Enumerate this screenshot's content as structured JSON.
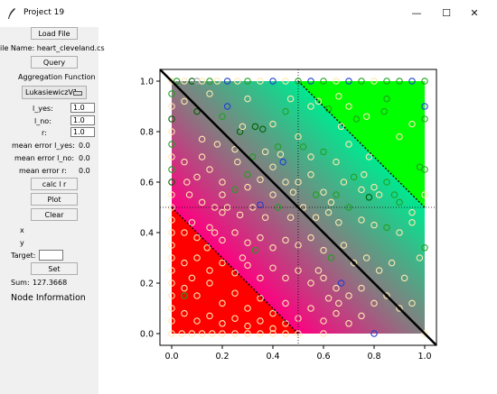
{
  "window": {
    "title": "Project 19",
    "minimize": "—",
    "maximize": "☐",
    "close": "✕"
  },
  "sidebar": {
    "load_file": "Load File",
    "file_name": "ile Name: heart_cleveland.cs",
    "query": "Query",
    "aggregation_label": "Aggregation Function",
    "aggregation_value": "LukasiewiczV1",
    "l_yes_label": "l_yes:",
    "l_yes_value": "1.0",
    "l_no_label": "l_no:",
    "l_no_value": "1.0",
    "r_label": "r:",
    "r_value": "1.0",
    "mean_error_yes_label": "mean error l_yes:",
    "mean_error_yes_value": "0.0",
    "mean_error_no_label": "mean error l_no:",
    "mean_error_no_value": "0.0",
    "mean_error_r_label": "mean error r:",
    "mean_error_r_value": "0.0",
    "calc": "calc l r",
    "plot": "Plot",
    "clear": "Clear",
    "x_label": "x",
    "y_label": "y",
    "target_label": "Target:",
    "target_value": "",
    "set": "Set",
    "sum_label": "Sum:",
    "sum_value": "127.3668",
    "node_info": "Node Information"
  },
  "chart_data": {
    "type": "scatter",
    "xlim": [
      0.0,
      1.0
    ],
    "ylim": [
      0.0,
      1.0
    ],
    "xticks": [
      "0.0",
      "0.2",
      "0.4",
      "0.6",
      "0.8",
      "1.0"
    ],
    "yticks": [
      "0.0",
      "0.2",
      "0.4",
      "0.6",
      "0.8",
      "1.0"
    ],
    "background_colors": {
      "low": "#ff0000",
      "mid": "#ff0080",
      "gray": "#808080",
      "teal": "#00e890",
      "high": "#00ff00"
    },
    "reference_lines": {
      "diagonal": [
        [
          0,
          1
        ],
        [
          1,
          0
        ]
      ],
      "upper_dotted": [
        [
          0.5,
          1
        ],
        [
          1,
          0.5
        ]
      ],
      "lower_dotted": [
        [
          0,
          0.5
        ],
        [
          0.5,
          0
        ]
      ],
      "crosshair": [
        0.5,
        0.5
      ]
    },
    "marker_colors": [
      "#ffe8b0",
      "#2040d0",
      "#20a020",
      "#006000",
      "#a0a0a0"
    ],
    "points": [
      [
        0.0,
        1.0,
        0
      ],
      [
        0.02,
        1.0,
        2
      ],
      [
        0.05,
        1.0,
        0
      ],
      [
        0.08,
        1.0,
        3
      ],
      [
        0.1,
        1.0,
        4
      ],
      [
        0.12,
        1.0,
        0
      ],
      [
        0.15,
        1.0,
        2
      ],
      [
        0.18,
        1.0,
        0
      ],
      [
        0.22,
        1.0,
        1
      ],
      [
        0.26,
        1.0,
        0
      ],
      [
        0.3,
        1.0,
        2
      ],
      [
        0.35,
        1.0,
        0
      ],
      [
        0.4,
        1.0,
        1
      ],
      [
        0.45,
        1.0,
        0
      ],
      [
        0.5,
        1.0,
        2
      ],
      [
        0.55,
        1.0,
        1
      ],
      [
        0.6,
        1.0,
        2
      ],
      [
        0.65,
        1.0,
        0
      ],
      [
        0.7,
        1.0,
        1
      ],
      [
        0.75,
        1.0,
        2
      ],
      [
        0.8,
        1.0,
        0
      ],
      [
        0.85,
        1.0,
        2
      ],
      [
        0.9,
        1.0,
        2
      ],
      [
        0.95,
        1.0,
        1
      ],
      [
        1.0,
        1.0,
        2
      ],
      [
        0.0,
        0.0,
        0
      ],
      [
        0.04,
        0.0,
        0
      ],
      [
        0.08,
        0.0,
        0
      ],
      [
        0.12,
        0.0,
        0
      ],
      [
        0.16,
        0.0,
        0
      ],
      [
        0.2,
        0.0,
        0
      ],
      [
        0.25,
        0.0,
        0
      ],
      [
        0.3,
        0.0,
        0
      ],
      [
        0.35,
        0.0,
        0
      ],
      [
        0.4,
        0.0,
        0
      ],
      [
        0.45,
        0.0,
        0
      ],
      [
        0.5,
        0.0,
        0
      ],
      [
        0.6,
        0.0,
        0
      ],
      [
        0.8,
        0.0,
        1
      ],
      [
        1.0,
        0.0,
        0
      ],
      [
        0.0,
        0.95,
        2
      ],
      [
        0.0,
        0.9,
        0
      ],
      [
        0.0,
        0.85,
        3
      ],
      [
        0.0,
        0.8,
        0
      ],
      [
        0.0,
        0.75,
        2
      ],
      [
        0.0,
        0.7,
        0
      ],
      [
        0.0,
        0.65,
        2
      ],
      [
        0.0,
        0.6,
        3
      ],
      [
        0.0,
        0.55,
        0
      ],
      [
        0.0,
        0.5,
        0
      ],
      [
        0.0,
        0.45,
        0
      ],
      [
        0.0,
        0.4,
        0
      ],
      [
        0.0,
        0.35,
        0
      ],
      [
        0.0,
        0.3,
        0
      ],
      [
        0.0,
        0.25,
        0
      ],
      [
        0.0,
        0.2,
        0
      ],
      [
        0.0,
        0.15,
        0
      ],
      [
        0.0,
        0.1,
        0
      ],
      [
        0.0,
        0.05,
        0
      ],
      [
        1.0,
        0.9,
        1
      ],
      [
        1.0,
        0.85,
        2
      ],
      [
        1.0,
        0.34,
        2
      ],
      [
        1.0,
        0.65,
        2
      ],
      [
        0.05,
        0.92,
        0
      ],
      [
        0.1,
        0.88,
        3
      ],
      [
        0.15,
        0.95,
        0
      ],
      [
        0.2,
        0.86,
        2
      ],
      [
        0.22,
        0.9,
        1
      ],
      [
        0.27,
        0.8,
        3
      ],
      [
        0.3,
        0.93,
        0
      ],
      [
        0.33,
        0.82,
        3
      ],
      [
        0.36,
        0.81,
        3
      ],
      [
        0.4,
        0.83,
        0
      ],
      [
        0.45,
        0.88,
        2
      ],
      [
        0.47,
        0.93,
        0
      ],
      [
        0.55,
        0.9,
        0
      ],
      [
        0.58,
        0.92,
        0
      ],
      [
        0.62,
        0.89,
        2
      ],
      [
        0.66,
        0.94,
        0
      ],
      [
        0.7,
        0.9,
        0
      ],
      [
        0.73,
        0.85,
        2
      ],
      [
        0.77,
        0.86,
        0
      ],
      [
        0.84,
        0.88,
        2
      ],
      [
        0.85,
        0.93,
        2
      ],
      [
        0.9,
        0.78,
        0
      ],
      [
        0.95,
        0.83,
        0
      ],
      [
        0.98,
        0.66,
        2
      ],
      [
        0.12,
        0.77,
        0
      ],
      [
        0.18,
        0.75,
        0
      ],
      [
        0.25,
        0.73,
        0
      ],
      [
        0.32,
        0.7,
        2
      ],
      [
        0.37,
        0.72,
        0
      ],
      [
        0.42,
        0.74,
        2
      ],
      [
        0.5,
        0.78,
        0
      ],
      [
        0.55,
        0.7,
        0
      ],
      [
        0.6,
        0.72,
        2
      ],
      [
        0.65,
        0.68,
        0
      ],
      [
        0.7,
        0.75,
        0
      ],
      [
        0.72,
        0.62,
        2
      ],
      [
        0.78,
        0.7,
        0
      ],
      [
        0.8,
        0.58,
        0
      ],
      [
        0.85,
        0.6,
        2
      ],
      [
        0.88,
        0.55,
        2
      ],
      [
        0.05,
        0.68,
        0
      ],
      [
        0.1,
        0.62,
        0
      ],
      [
        0.15,
        0.65,
        0
      ],
      [
        0.2,
        0.6,
        0
      ],
      [
        0.25,
        0.57,
        2
      ],
      [
        0.3,
        0.63,
        2
      ],
      [
        0.35,
        0.61,
        0
      ],
      [
        0.4,
        0.66,
        0
      ],
      [
        0.45,
        0.6,
        0
      ],
      [
        0.5,
        0.6,
        0
      ],
      [
        0.55,
        0.63,
        0
      ],
      [
        0.6,
        0.56,
        0
      ],
      [
        0.65,
        0.55,
        2
      ],
      [
        0.68,
        0.6,
        0
      ],
      [
        0.75,
        0.57,
        0
      ],
      [
        0.78,
        0.54,
        3
      ],
      [
        0.82,
        0.55,
        0
      ],
      [
        0.9,
        0.52,
        2
      ],
      [
        0.95,
        0.48,
        0
      ],
      [
        1.0,
        0.55,
        0
      ],
      [
        0.07,
        0.55,
        0
      ],
      [
        0.12,
        0.52,
        0
      ],
      [
        0.17,
        0.5,
        0
      ],
      [
        0.2,
        0.48,
        0
      ],
      [
        0.22,
        0.5,
        0
      ],
      [
        0.27,
        0.47,
        0
      ],
      [
        0.32,
        0.5,
        0
      ],
      [
        0.37,
        0.46,
        0
      ],
      [
        0.42,
        0.5,
        2
      ],
      [
        0.47,
        0.46,
        0
      ],
      [
        0.52,
        0.5,
        0
      ],
      [
        0.57,
        0.46,
        0
      ],
      [
        0.62,
        0.48,
        0
      ],
      [
        0.66,
        0.44,
        0
      ],
      [
        0.7,
        0.5,
        2
      ],
      [
        0.75,
        0.45,
        0
      ],
      [
        0.8,
        0.43,
        0
      ],
      [
        0.85,
        0.42,
        2
      ],
      [
        0.9,
        0.4,
        0
      ],
      [
        0.95,
        0.44,
        0
      ],
      [
        0.05,
        0.4,
        0
      ],
      [
        0.1,
        0.38,
        0
      ],
      [
        0.15,
        0.42,
        0
      ],
      [
        0.2,
        0.37,
        0
      ],
      [
        0.25,
        0.4,
        0
      ],
      [
        0.3,
        0.36,
        0
      ],
      [
        0.35,
        0.38,
        0
      ],
      [
        0.4,
        0.34,
        0
      ],
      [
        0.45,
        0.37,
        0
      ],
      [
        0.5,
        0.35,
        0
      ],
      [
        0.55,
        0.38,
        0
      ],
      [
        0.6,
        0.33,
        0
      ],
      [
        0.63,
        0.3,
        2
      ],
      [
        0.68,
        0.35,
        0
      ],
      [
        0.72,
        0.28,
        0
      ],
      [
        0.77,
        0.3,
        0
      ],
      [
        0.82,
        0.25,
        0
      ],
      [
        0.87,
        0.28,
        0
      ],
      [
        0.92,
        0.22,
        0
      ],
      [
        0.98,
        0.3,
        0
      ],
      [
        0.05,
        0.28,
        0
      ],
      [
        0.1,
        0.3,
        0
      ],
      [
        0.15,
        0.25,
        0
      ],
      [
        0.2,
        0.28,
        0
      ],
      [
        0.25,
        0.24,
        0
      ],
      [
        0.3,
        0.27,
        0
      ],
      [
        0.35,
        0.22,
        0
      ],
      [
        0.4,
        0.26,
        0
      ],
      [
        0.45,
        0.22,
        0
      ],
      [
        0.5,
        0.25,
        0
      ],
      [
        0.55,
        0.2,
        0
      ],
      [
        0.6,
        0.22,
        0
      ],
      [
        0.65,
        0.18,
        0
      ],
      [
        0.67,
        0.2,
        1
      ],
      [
        0.7,
        0.15,
        0
      ],
      [
        0.75,
        0.18,
        0
      ],
      [
        0.8,
        0.12,
        0
      ],
      [
        0.85,
        0.15,
        0
      ],
      [
        0.9,
        0.1,
        0
      ],
      [
        0.95,
        0.12,
        0
      ],
      [
        0.05,
        0.18,
        0
      ],
      [
        0.1,
        0.15,
        0
      ],
      [
        0.15,
        0.2,
        0
      ],
      [
        0.2,
        0.12,
        0
      ],
      [
        0.25,
        0.16,
        0
      ],
      [
        0.3,
        0.1,
        0
      ],
      [
        0.35,
        0.14,
        0
      ],
      [
        0.4,
        0.08,
        0
      ],
      [
        0.45,
        0.12,
        0
      ],
      [
        0.5,
        0.06,
        0
      ],
      [
        0.55,
        0.1,
        0
      ],
      [
        0.6,
        0.05,
        0
      ],
      [
        0.65,
        0.08,
        0
      ],
      [
        0.7,
        0.04,
        0
      ],
      [
        0.75,
        0.07,
        0
      ],
      [
        0.05,
        0.08,
        0
      ],
      [
        0.1,
        0.05,
        0
      ],
      [
        0.15,
        0.07,
        0
      ],
      [
        0.2,
        0.04,
        0
      ],
      [
        0.25,
        0.06,
        0
      ],
      [
        0.3,
        0.03,
        0
      ],
      [
        0.35,
        0.05,
        0
      ],
      [
        0.4,
        0.02,
        0
      ],
      [
        0.45,
        0.04,
        0
      ],
      [
        0.14,
        0.34,
        0
      ],
      [
        0.17,
        0.4,
        0
      ],
      [
        0.08,
        0.44,
        0
      ],
      [
        0.28,
        0.3,
        0
      ],
      [
        0.33,
        0.33,
        2
      ],
      [
        0.58,
        0.25,
        0
      ],
      [
        0.62,
        0.14,
        0
      ],
      [
        0.66,
        0.12,
        0
      ],
      [
        0.05,
        0.15,
        2
      ],
      [
        0.08,
        0.22,
        0
      ],
      [
        0.44,
        0.68,
        1
      ],
      [
        0.52,
        0.74,
        2
      ],
      [
        0.26,
        0.68,
        0
      ],
      [
        0.35,
        0.51,
        1
      ],
      [
        0.67,
        0.82,
        0
      ],
      [
        0.76,
        0.63,
        0
      ],
      [
        0.43,
        0.71,
        0
      ],
      [
        0.63,
        0.52,
        0
      ],
      [
        0.57,
        0.55,
        2
      ],
      [
        0.48,
        0.56,
        0
      ],
      [
        0.2,
        0.55,
        0
      ],
      [
        0.3,
        0.58,
        0
      ],
      [
        0.4,
        0.55,
        0
      ],
      [
        0.06,
        0.6,
        0
      ],
      [
        0.12,
        0.7,
        0
      ],
      [
        0.28,
        0.82,
        0
      ]
    ]
  }
}
